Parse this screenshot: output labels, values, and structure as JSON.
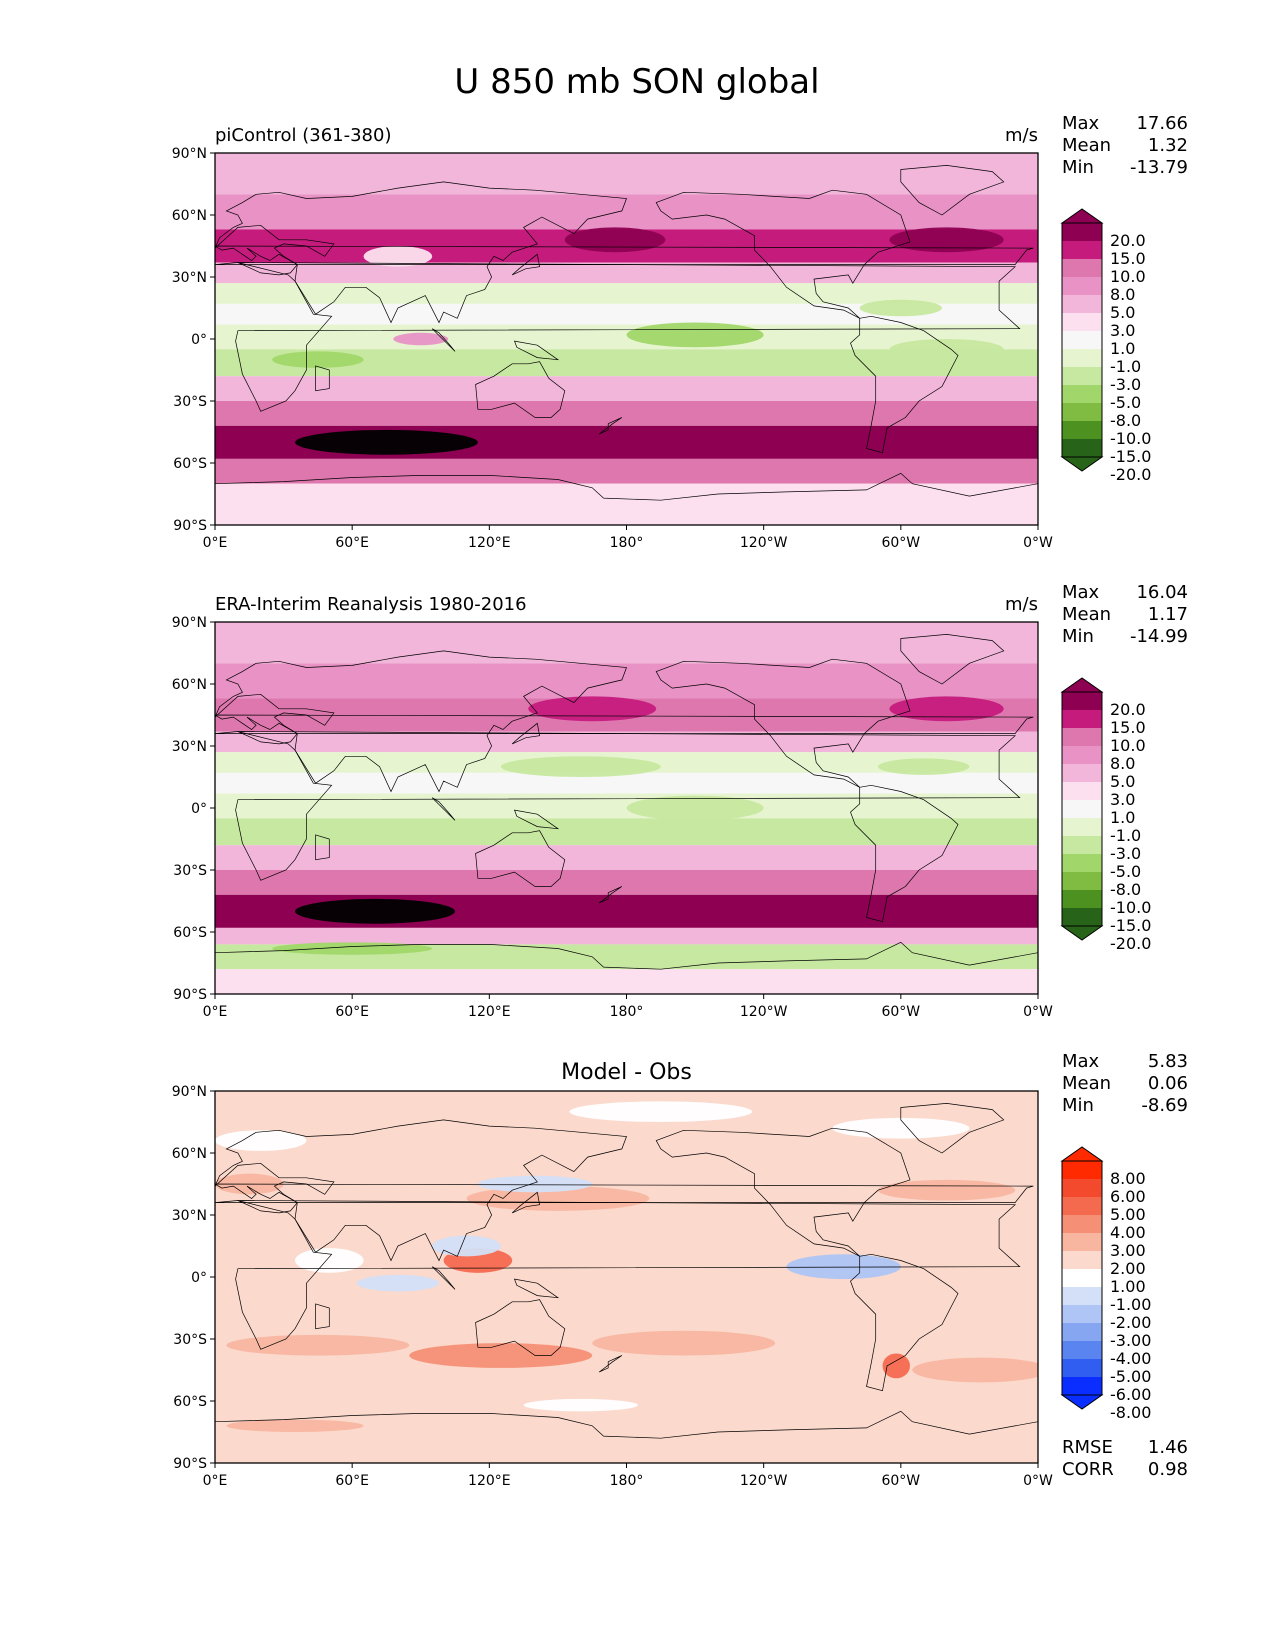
{
  "figure": {
    "title": "U 850 mb SON global"
  },
  "colors": {
    "pink_green_scale": [
      "#276419",
      "#4d9221",
      "#7fbc41",
      "#a1d76a",
      "#c7e8a0",
      "#e6f5d0",
      "#f7f7f7",
      "#fde0ef",
      "#f1b6da",
      "#e892c6",
      "#de77ae",
      "#c51b7d",
      "#8e0152"
    ],
    "diff_scale": [
      "#0a2eff",
      "#2f5ef0",
      "#5a84f0",
      "#86a6f2",
      "#aec5f5",
      "#d3e0f8",
      "#ffffff",
      "#fbd9cc",
      "#f8b6a0",
      "#f59076",
      "#f46a4f",
      "#f34a2e",
      "#ff2a00"
    ],
    "coastline": "#000000"
  },
  "panels": [
    {
      "id": "model",
      "left_title": "piControl (361-380)",
      "center_title": "",
      "units": "m/s",
      "stats": [
        {
          "label": "Max",
          "value": "17.66"
        },
        {
          "label": "Mean",
          "value": "1.32"
        },
        {
          "label": "Min",
          "value": "-13.79"
        }
      ],
      "colorbar_labels": [
        "20.0",
        "15.0",
        "10.0",
        "8.0",
        "5.0",
        "3.0",
        "1.0",
        "-1.0",
        "-3.0",
        "-5.0",
        "-8.0",
        "-10.0",
        "-15.0",
        "-20.0"
      ],
      "colorbar_scale": "pink_green_scale",
      "extra_stats": []
    },
    {
      "id": "obs",
      "left_title": "ERA-Interim Reanalysis 1980-2016",
      "center_title": "",
      "units": "m/s",
      "stats": [
        {
          "label": "Max",
          "value": "16.04"
        },
        {
          "label": "Mean",
          "value": "1.17"
        },
        {
          "label": "Min",
          "value": "-14.99"
        }
      ],
      "colorbar_labels": [
        "20.0",
        "15.0",
        "10.0",
        "8.0",
        "5.0",
        "3.0",
        "1.0",
        "-1.0",
        "-3.0",
        "-5.0",
        "-8.0",
        "-10.0",
        "-15.0",
        "-20.0"
      ],
      "colorbar_scale": "pink_green_scale",
      "extra_stats": []
    },
    {
      "id": "diff",
      "left_title": "",
      "center_title": "Model - Obs",
      "units": "",
      "stats": [
        {
          "label": "Max",
          "value": "5.83"
        },
        {
          "label": "Mean",
          "value": "0.06"
        },
        {
          "label": "Min",
          "value": "-8.69"
        }
      ],
      "colorbar_labels": [
        "8.00",
        "6.00",
        "5.00",
        "4.00",
        "3.00",
        "2.00",
        "1.00",
        "-1.00",
        "-2.00",
        "-3.00",
        "-4.00",
        "-5.00",
        "-6.00",
        "-8.00"
      ],
      "colorbar_scale": "diff_scale",
      "extra_stats": [
        {
          "label": "RMSE",
          "value": "1.46"
        },
        {
          "label": "CORR",
          "value": "0.98"
        }
      ]
    }
  ],
  "axes": {
    "lat_ticks": [
      "90°N",
      "60°N",
      "30°N",
      "0°",
      "30°S",
      "60°S",
      "90°S"
    ],
    "lon_ticks": [
      "0°E",
      "60°E",
      "120°E",
      "180°",
      "120°W",
      "60°W",
      "0°W"
    ]
  },
  "chart_data": [
    {
      "type": "heatmap",
      "title": "piControl (361-380)",
      "units": "m/s",
      "x": [
        0,
        60,
        120,
        180,
        240,
        300,
        360
      ],
      "y": [
        90,
        60,
        30,
        0,
        -30,
        -60,
        -90
      ],
      "xlim": [
        0,
        360
      ],
      "ylim": [
        -90,
        90
      ],
      "levels": [
        -20,
        -15,
        -10,
        -8,
        -5,
        -3,
        -1,
        1,
        3,
        5,
        8,
        10,
        15,
        20
      ],
      "zonal_mean_profile": [
        {
          "lat": 75,
          "value": 2
        },
        {
          "lat": 60,
          "value": 4
        },
        {
          "lat": 45,
          "value": 9
        },
        {
          "lat": 30,
          "value": 2
        },
        {
          "lat": 15,
          "value": -5
        },
        {
          "lat": 0,
          "value": -3
        },
        {
          "lat": -10,
          "value": -6
        },
        {
          "lat": -25,
          "value": 2
        },
        {
          "lat": -40,
          "value": 8
        },
        {
          "lat": -52,
          "value": 14
        },
        {
          "lat": -65,
          "value": 4
        },
        {
          "lat": -75,
          "value": -2
        }
      ],
      "stats": {
        "max": 17.66,
        "mean": 1.32,
        "min": -13.79
      }
    },
    {
      "type": "heatmap",
      "title": "ERA-Interim Reanalysis 1980-2016",
      "units": "m/s",
      "x": [
        0,
        60,
        120,
        180,
        240,
        300,
        360
      ],
      "y": [
        90,
        60,
        30,
        0,
        -30,
        -60,
        -90
      ],
      "xlim": [
        0,
        360
      ],
      "ylim": [
        -90,
        90
      ],
      "levels": [
        -20,
        -15,
        -10,
        -8,
        -5,
        -3,
        -1,
        1,
        3,
        5,
        8,
        10,
        15,
        20
      ],
      "zonal_mean_profile": [
        {
          "lat": 75,
          "value": 2
        },
        {
          "lat": 60,
          "value": 4
        },
        {
          "lat": 45,
          "value": 8
        },
        {
          "lat": 30,
          "value": 2
        },
        {
          "lat": 15,
          "value": -5
        },
        {
          "lat": 0,
          "value": -3
        },
        {
          "lat": -10,
          "value": -6
        },
        {
          "lat": -25,
          "value": 2
        },
        {
          "lat": -40,
          "value": 8
        },
        {
          "lat": -52,
          "value": 13
        },
        {
          "lat": -65,
          "value": 2
        },
        {
          "lat": -72,
          "value": -6
        }
      ],
      "stats": {
        "max": 16.04,
        "mean": 1.17,
        "min": -14.99
      }
    },
    {
      "type": "heatmap",
      "title": "Model - Obs",
      "x": [
        0,
        60,
        120,
        180,
        240,
        300,
        360
      ],
      "y": [
        90,
        60,
        30,
        0,
        -30,
        -60,
        -90
      ],
      "xlim": [
        0,
        360
      ],
      "ylim": [
        -90,
        90
      ],
      "levels": [
        -8,
        -6,
        -5,
        -4,
        -3,
        -2,
        -1,
        1,
        2,
        3,
        4,
        5,
        6,
        8
      ],
      "stats": {
        "max": 5.83,
        "mean": 0.06,
        "min": -8.69,
        "rmse": 1.46,
        "corr": 0.98
      }
    }
  ]
}
